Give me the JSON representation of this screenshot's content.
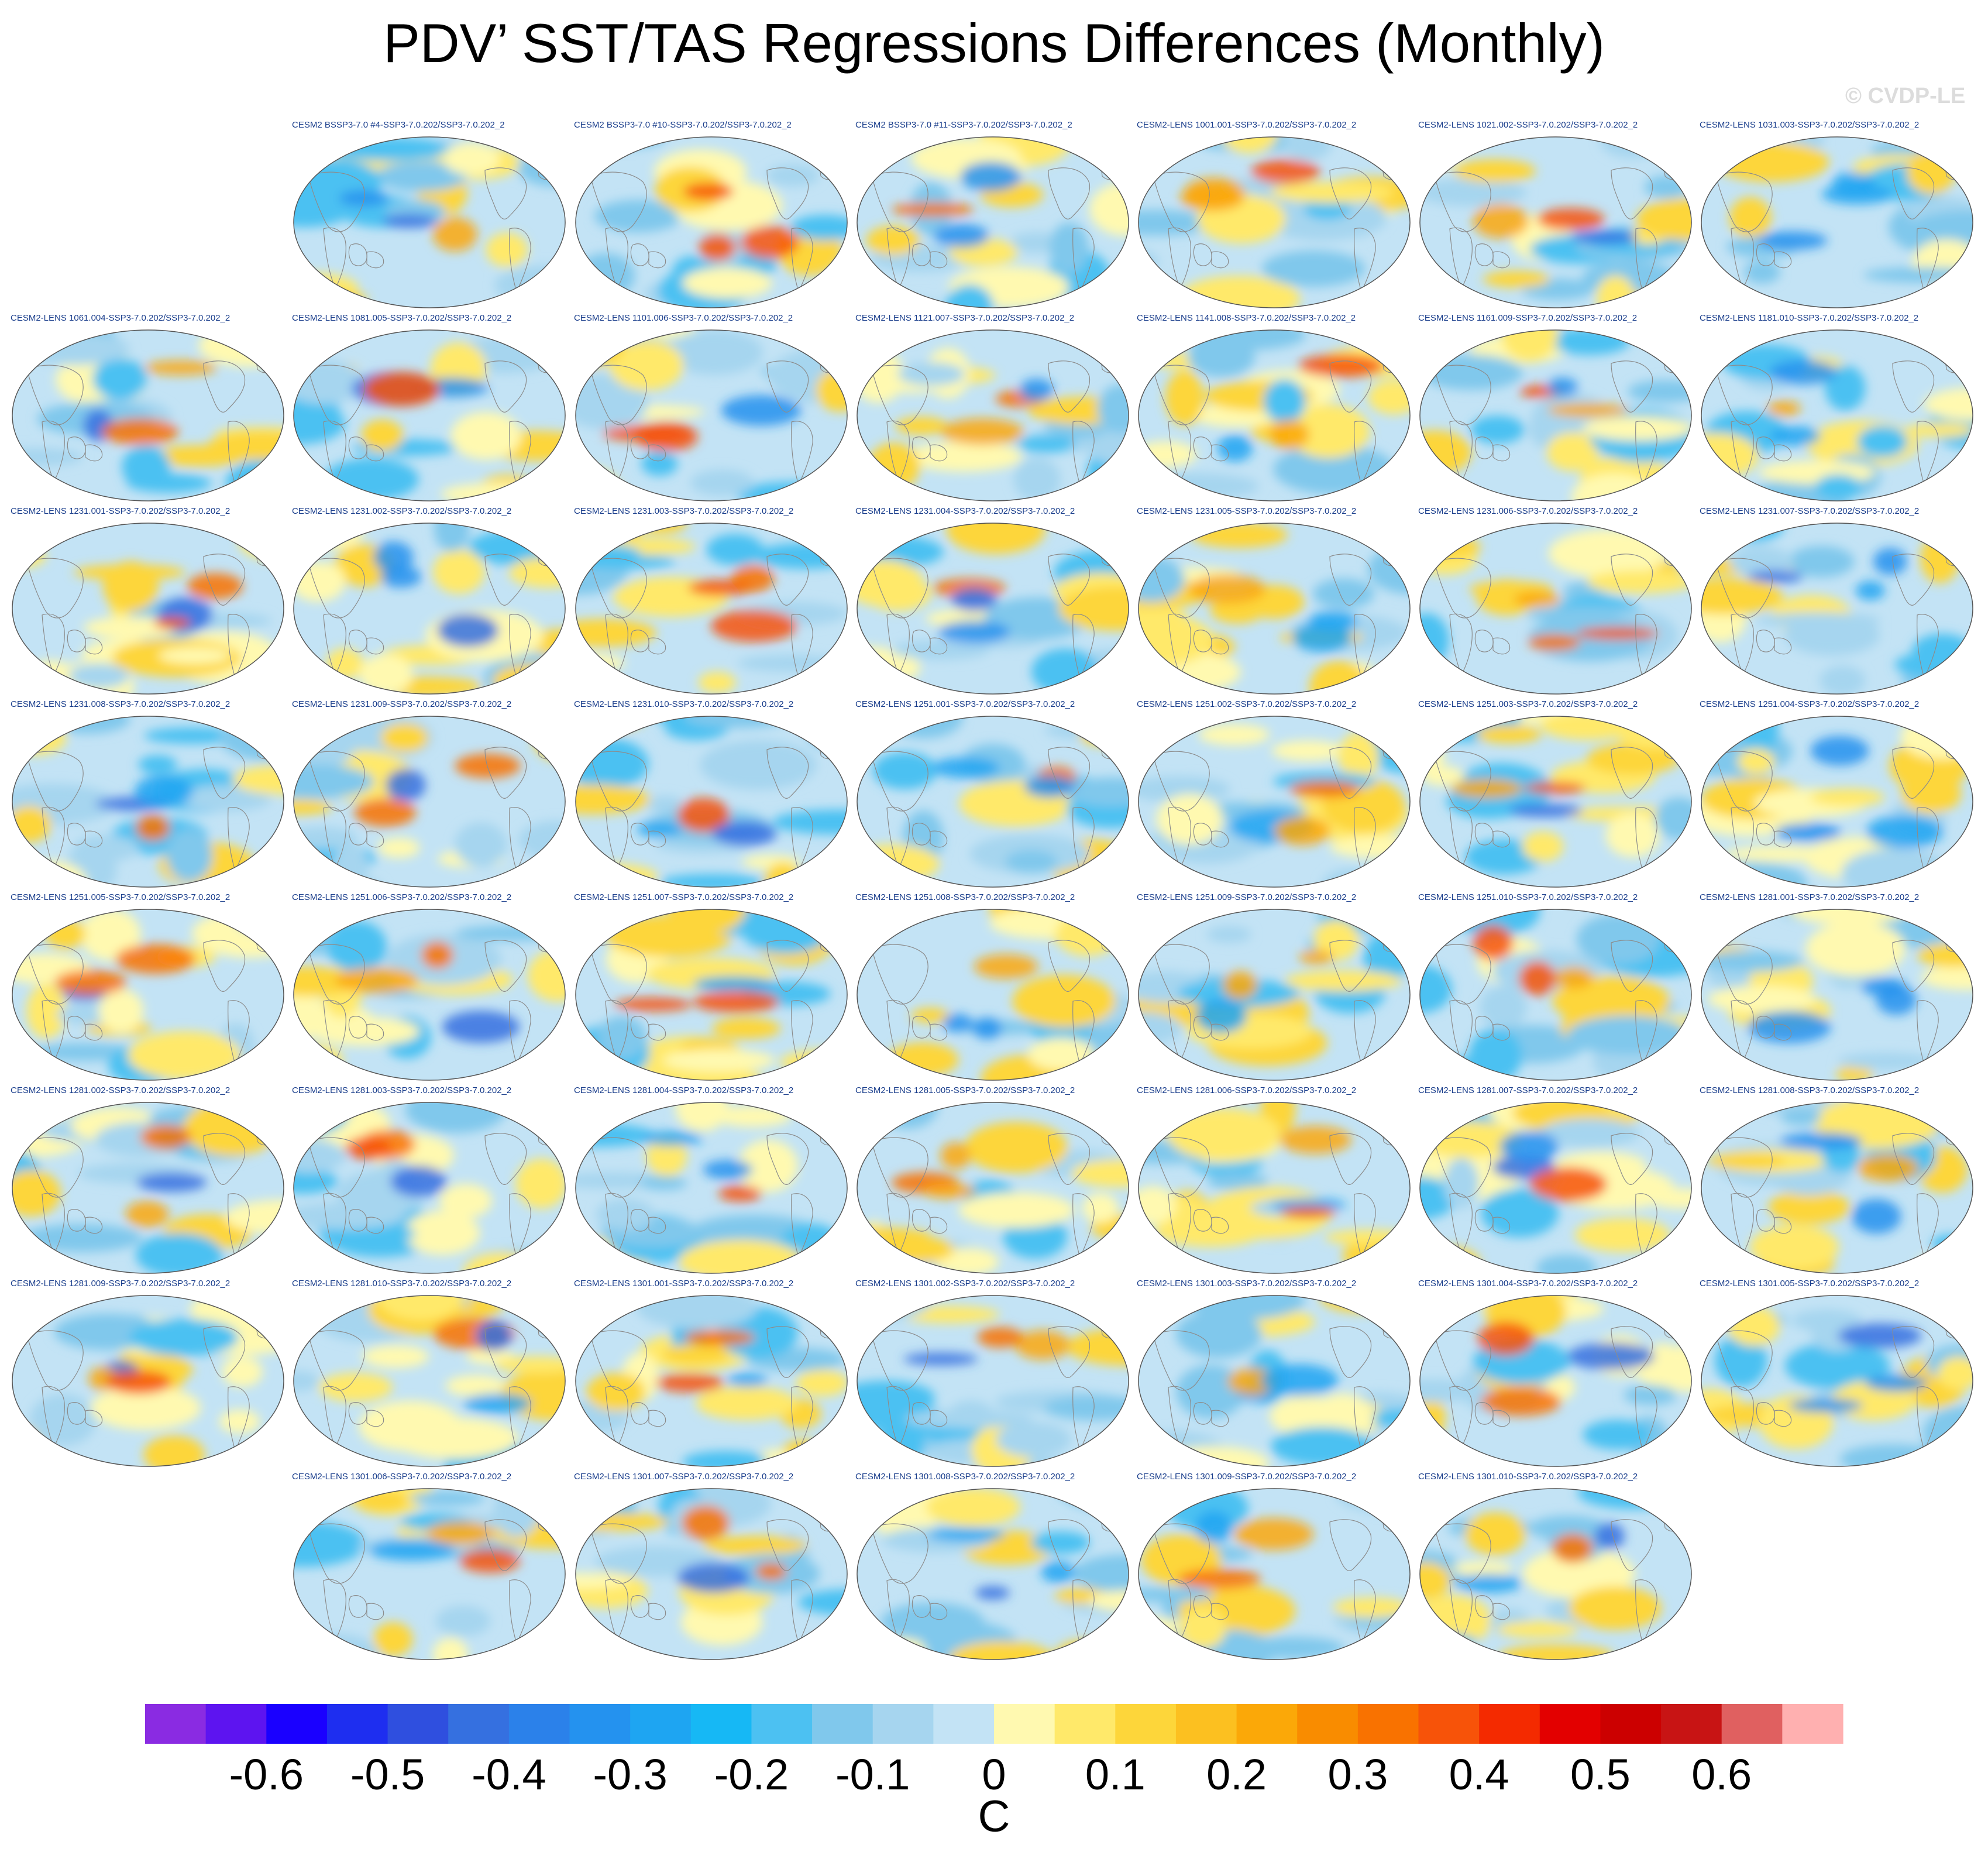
{
  "title": "PDV’ SST/TAS Regressions Differences (Monthly)",
  "watermark": "© CVDP-LE",
  "panels": [
    "CESM2 BSSP3-7.0 #4-SSP3-7.0.202/SSP3-7.0.202_2",
    "CESM2 BSSP3-7.0 #10-SSP3-7.0.202/SSP3-7.0.202_2",
    "CESM2 BSSP3-7.0 #11-SSP3-7.0.202/SSP3-7.0.202_2",
    "CESM2-LENS 1001.001-SSP3-7.0.202/SSP3-7.0.202_2",
    "CESM2-LENS 1021.002-SSP3-7.0.202/SSP3-7.0.202_2",
    "CESM2-LENS 1031.003-SSP3-7.0.202/SSP3-7.0.202_2",
    "CESM2-LENS 1061.004-SSP3-7.0.202/SSP3-7.0.202_2",
    "CESM2-LENS 1081.005-SSP3-7.0.202/SSP3-7.0.202_2",
    "CESM2-LENS 1101.006-SSP3-7.0.202/SSP3-7.0.202_2",
    "CESM2-LENS 1121.007-SSP3-7.0.202/SSP3-7.0.202_2",
    "CESM2-LENS 1141.008-SSP3-7.0.202/SSP3-7.0.202_2",
    "CESM2-LENS 1161.009-SSP3-7.0.202/SSP3-7.0.202_2",
    "CESM2-LENS 1181.010-SSP3-7.0.202/SSP3-7.0.202_2",
    "CESM2-LENS 1231.001-SSP3-7.0.202/SSP3-7.0.202_2",
    "CESM2-LENS 1231.002-SSP3-7.0.202/SSP3-7.0.202_2",
    "CESM2-LENS 1231.003-SSP3-7.0.202/SSP3-7.0.202_2",
    "CESM2-LENS 1231.004-SSP3-7.0.202/SSP3-7.0.202_2",
    "CESM2-LENS 1231.005-SSP3-7.0.202/SSP3-7.0.202_2",
    "CESM2-LENS 1231.006-SSP3-7.0.202/SSP3-7.0.202_2",
    "CESM2-LENS 1231.007-SSP3-7.0.202/SSP3-7.0.202_2",
    "CESM2-LENS 1231.008-SSP3-7.0.202/SSP3-7.0.202_2",
    "CESM2-LENS 1231.009-SSP3-7.0.202/SSP3-7.0.202_2",
    "CESM2-LENS 1231.010-SSP3-7.0.202/SSP3-7.0.202_2",
    "CESM2-LENS 1251.001-SSP3-7.0.202/SSP3-7.0.202_2",
    "CESM2-LENS 1251.002-SSP3-7.0.202/SSP3-7.0.202_2",
    "CESM2-LENS 1251.003-SSP3-7.0.202/SSP3-7.0.202_2",
    "CESM2-LENS 1251.004-SSP3-7.0.202/SSP3-7.0.202_2",
    "CESM2-LENS 1251.005-SSP3-7.0.202/SSP3-7.0.202_2",
    "CESM2-LENS 1251.006-SSP3-7.0.202/SSP3-7.0.202_2",
    "CESM2-LENS 1251.007-SSP3-7.0.202/SSP3-7.0.202_2",
    "CESM2-LENS 1251.008-SSP3-7.0.202/SSP3-7.0.202_2",
    "CESM2-LENS 1251.009-SSP3-7.0.202/SSP3-7.0.202_2",
    "CESM2-LENS 1251.010-SSP3-7.0.202/SSP3-7.0.202_2",
    "CESM2-LENS 1281.001-SSP3-7.0.202/SSP3-7.0.202_2",
    "CESM2-LENS 1281.002-SSP3-7.0.202/SSP3-7.0.202_2",
    "CESM2-LENS 1281.003-SSP3-7.0.202/SSP3-7.0.202_2",
    "CESM2-LENS 1281.004-SSP3-7.0.202/SSP3-7.0.202_2",
    "CESM2-LENS 1281.005-SSP3-7.0.202/SSP3-7.0.202_2",
    "CESM2-LENS 1281.006-SSP3-7.0.202/SSP3-7.0.202_2",
    "CESM2-LENS 1281.007-SSP3-7.0.202/SSP3-7.0.202_2",
    "CESM2-LENS 1281.008-SSP3-7.0.202/SSP3-7.0.202_2",
    "CESM2-LENS 1281.009-SSP3-7.0.202/SSP3-7.0.202_2",
    "CESM2-LENS 1281.010-SSP3-7.0.202/SSP3-7.0.202_2",
    "CESM2-LENS 1301.001-SSP3-7.0.202/SSP3-7.0.202_2",
    "CESM2-LENS 1301.002-SSP3-7.0.202/SSP3-7.0.202_2",
    "CESM2-LENS 1301.003-SSP3-7.0.202/SSP3-7.0.202_2",
    "CESM2-LENS 1301.004-SSP3-7.0.202/SSP3-7.0.202_2",
    "CESM2-LENS 1301.005-SSP3-7.0.202/SSP3-7.0.202_2",
    "CESM2-LENS 1301.006-SSP3-7.0.202/SSP3-7.0.202_2",
    "CESM2-LENS 1301.007-SSP3-7.0.202/SSP3-7.0.202_2",
    "CESM2-LENS 1301.008-SSP3-7.0.202/SSP3-7.0.202_2",
    "CESM2-LENS 1301.009-SSP3-7.0.202/SSP3-7.0.202_2",
    "CESM2-LENS 1301.010-SSP3-7.0.202/SSP3-7.0.202_2"
  ],
  "chart_data": {
    "type": "heatmap",
    "title": "PDV’ SST/TAS Regressions Differences (Monthly)",
    "projection": "Robinson (global, Pacific-centered)",
    "variable": "SST/TAS regression difference",
    "colorbar": {
      "unit": "C",
      "levels": [
        -0.65,
        -0.6,
        -0.55,
        -0.5,
        -0.45,
        -0.4,
        -0.35,
        -0.3,
        -0.25,
        -0.2,
        -0.15,
        -0.1,
        -0.05,
        0,
        0.05,
        0.1,
        0.15,
        0.2,
        0.25,
        0.3,
        0.35,
        0.4,
        0.45,
        0.5,
        0.55,
        0.6,
        0.65
      ],
      "tick_labels": [
        "-0.6",
        "-0.5",
        "-0.4",
        "-0.3",
        "-0.2",
        "-0.1",
        "0",
        "0.1",
        "0.2",
        "0.3",
        "0.4",
        "0.5",
        "0.6"
      ],
      "colors": [
        "#8a2be2",
        "#5d14f0",
        "#1a00ff",
        "#1e2ef0",
        "#2f4fdf",
        "#3570e0",
        "#2b81ea",
        "#2492ef",
        "#1ea5f2",
        "#16b8f5",
        "#4cc1f2",
        "#80c8ec",
        "#a6d5ef",
        "#c3e3f5",
        "#fff9b0",
        "#ffe96a",
        "#fdd63a",
        "#fcc020",
        "#fba808",
        "#f98c00",
        "#f97200",
        "#f75309",
        "#f42a00",
        "#e30000",
        "#cc0000",
        "#c81414",
        "#e06060",
        "#ffb0b0"
      ]
    },
    "panel_count": 53
  }
}
